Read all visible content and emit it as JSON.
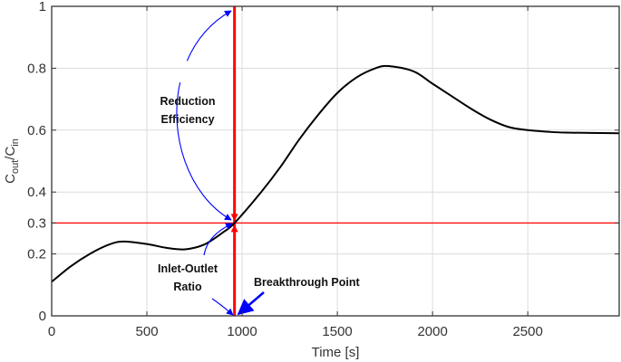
{
  "chart_data": {
    "type": "line",
    "xlabel": "Time [s]",
    "ylabel_main": "C",
    "ylabel_sub1": "out",
    "ylabel_slash": "/C",
    "ylabel_sub2": "in",
    "xlim": [
      0,
      2980
    ],
    "ylim": [
      0,
      1
    ],
    "grid": true,
    "x_ticks": [
      0,
      500,
      1000,
      1500,
      2000,
      2500
    ],
    "x_tick_labels": [
      "0",
      "500",
      "1000",
      "1500",
      "2000",
      "2500"
    ],
    "y_ticks": [
      0,
      0.2,
      0.3,
      0.4,
      0.6,
      0.8,
      1
    ],
    "y_tick_labels": [
      "0",
      "0.2",
      "0.3",
      "0.4",
      "0.6",
      "0.8",
      "1"
    ],
    "series": [
      {
        "color": "#000000",
        "x": [
          0,
          100,
          200,
          300,
          375,
          500,
          600,
          700,
          800,
          900,
          960,
          1100,
          1200,
          1300,
          1400,
          1500,
          1600,
          1700,
          1770,
          1900,
          2000,
          2100,
          2200,
          2300,
          2400,
          2500,
          2600,
          2700,
          2980
        ],
        "y": [
          0.11,
          0.16,
          0.2,
          0.23,
          0.24,
          0.232,
          0.22,
          0.215,
          0.23,
          0.27,
          0.3,
          0.4,
          0.48,
          0.57,
          0.65,
          0.72,
          0.77,
          0.8,
          0.807,
          0.79,
          0.75,
          0.71,
          0.67,
          0.635,
          0.61,
          0.6,
          0.595,
          0.592,
          0.59
        ]
      }
    ],
    "reference_lines": {
      "horizontal_y": 0.3,
      "vertical_x": 960,
      "color": "#ff0000"
    },
    "annotations": {
      "color": "#0000ff",
      "reduction_line1": "Reduction",
      "reduction_line2": "Efficiency",
      "ratio_line1": "Inlet-Outlet",
      "ratio_line2": "Ratio",
      "breakthrough": "Breakthrough Point"
    }
  }
}
